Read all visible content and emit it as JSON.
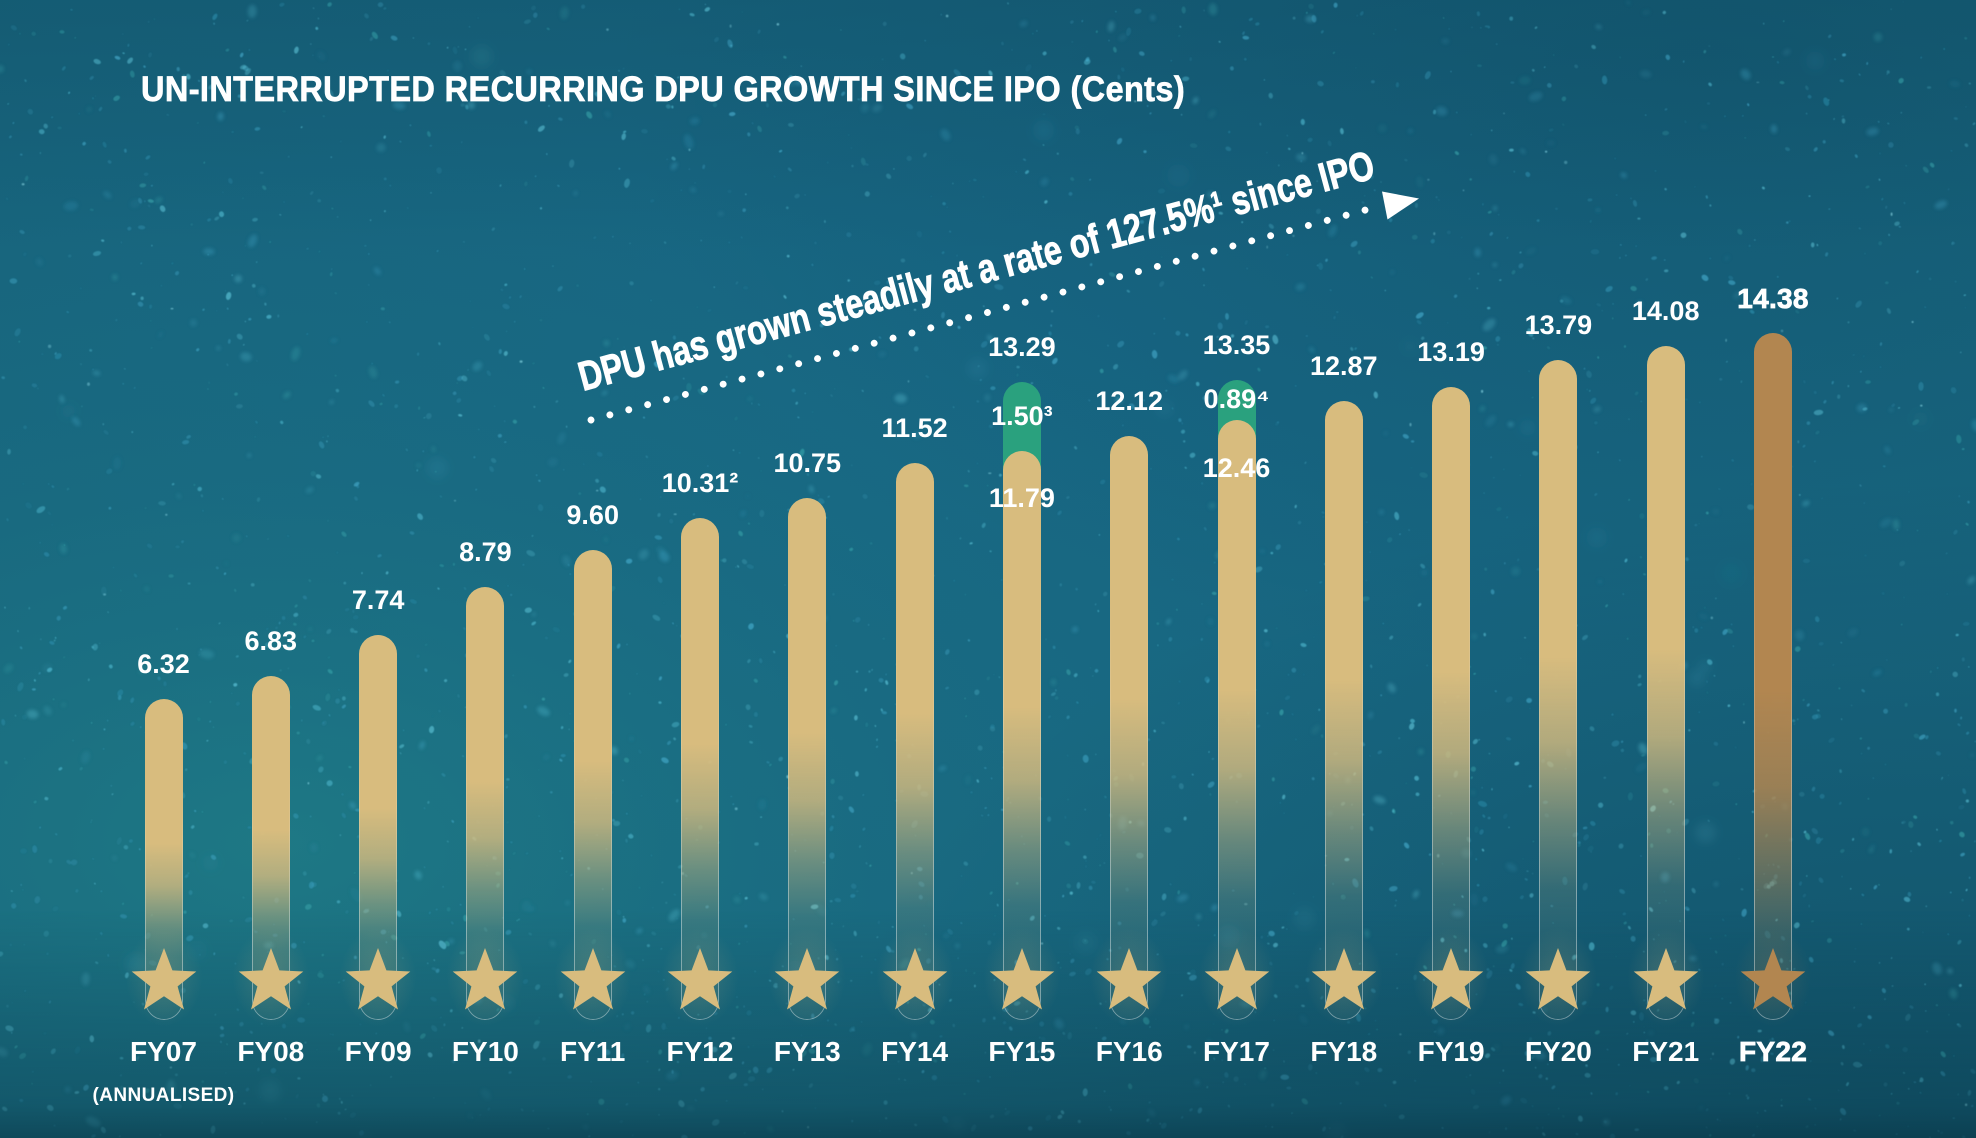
{
  "title": "UN-INTERRUPTED RECURRING DPU GROWTH SINCE IPO (Cents)",
  "annotation": {
    "text": "DPU has grown steadily at a rate of 127.5%¹ since IPO",
    "arrow_icon": "dotted-line-right-arrow"
  },
  "footnote": "(ANNUALISED)",
  "colors": {
    "background": "#1a6377",
    "bar_gold": "#d8bc7e",
    "bar_bronze": "#b28650",
    "bar_green": "#2aa17e",
    "label_text": "#ffffff"
  },
  "chart_data": {
    "type": "bar",
    "title": "UN-INTERRUPTED RECURRING DPU GROWTH SINCE IPO (Cents)",
    "unit": "Cents",
    "annotation": "DPU has grown steadily at a rate of 127.5%¹ since IPO",
    "x_note": "(ANNUALISED)",
    "categories": [
      "FY07",
      "FY08",
      "FY09",
      "FY10",
      "FY11",
      "FY12",
      "FY13",
      "FY14",
      "FY15",
      "FY16",
      "FY17",
      "FY18",
      "FY19",
      "FY20",
      "FY21",
      "FY22"
    ],
    "values": [
      6.32,
      6.83,
      7.74,
      8.79,
      9.6,
      10.31,
      10.75,
      11.52,
      13.29,
      12.12,
      13.35,
      12.87,
      13.19,
      13.79,
      14.08,
      14.38
    ],
    "bars": [
      {
        "category": "FY07",
        "value": 6.32,
        "label": "6.32",
        "note": "(ANNUALISED)"
      },
      {
        "category": "FY08",
        "value": 6.83,
        "label": "6.83"
      },
      {
        "category": "FY09",
        "value": 7.74,
        "label": "7.74"
      },
      {
        "category": "FY10",
        "value": 8.79,
        "label": "8.79"
      },
      {
        "category": "FY11",
        "value": 9.6,
        "label": "9.60"
      },
      {
        "category": "FY12",
        "value": 10.31,
        "label": "10.31²"
      },
      {
        "category": "FY13",
        "value": 10.75,
        "label": "10.75"
      },
      {
        "category": "FY14",
        "value": 11.52,
        "label": "11.52"
      },
      {
        "category": "FY15",
        "value": 13.29,
        "label": "13.29",
        "segments": [
          {
            "value": 11.79,
            "label": "11.79",
            "color": "gold"
          },
          {
            "value": 1.5,
            "label": "1.50³",
            "color": "green"
          }
        ]
      },
      {
        "category": "FY16",
        "value": 12.12,
        "label": "12.12"
      },
      {
        "category": "FY17",
        "value": 13.35,
        "label": "13.35",
        "segments": [
          {
            "value": 12.46,
            "label": "12.46",
            "color": "gold"
          },
          {
            "value": 0.89,
            "label": "0.89⁴",
            "color": "green"
          }
        ]
      },
      {
        "category": "FY18",
        "value": 12.87,
        "label": "12.87"
      },
      {
        "category": "FY19",
        "value": 13.19,
        "label": "13.19"
      },
      {
        "category": "FY20",
        "value": 13.79,
        "label": "13.79"
      },
      {
        "category": "FY21",
        "value": 14.08,
        "label": "14.08"
      },
      {
        "category": "FY22",
        "value": 14.38,
        "label": "14.38",
        "emphasis": true
      }
    ],
    "legend": [],
    "grid": false,
    "ylim": [
      0,
      15
    ]
  }
}
